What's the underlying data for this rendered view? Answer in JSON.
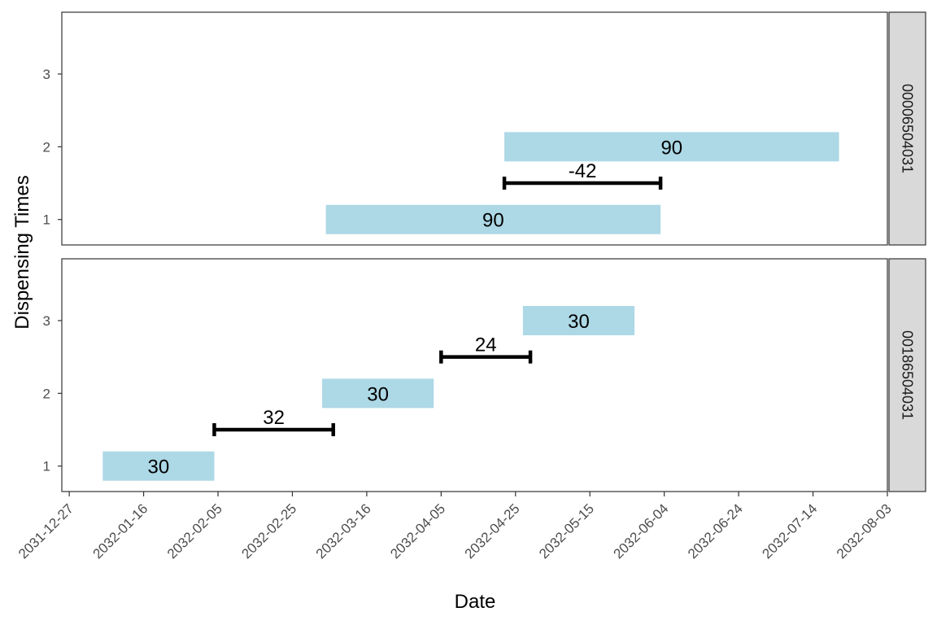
{
  "chart_data": {
    "type": "bar",
    "subtype": "faceted timeline (horizontal date-range bars with gap segments)",
    "xlabel": "Date",
    "ylabel": "Dispensing Times",
    "xlim": [
      "2031-12-25",
      "2032-08-03"
    ],
    "x_ticks": [
      "2031-12-27",
      "2032-01-16",
      "2032-02-05",
      "2032-02-25",
      "2032-03-16",
      "2032-04-05",
      "2032-04-25",
      "2032-05-15",
      "2032-06-04",
      "2032-06-24",
      "2032-07-14",
      "2032-08-03"
    ],
    "y_ticks": [
      1,
      2,
      3
    ],
    "ylim": [
      0.65,
      3.85
    ],
    "grid": false,
    "colors": {
      "bar": "#add8e6",
      "gap": "#000000",
      "strip": "#d9d9d9",
      "panel_border": "#333333"
    },
    "facets": [
      {
        "label": "00006504031",
        "bars": [
          {
            "y": 1,
            "start": "2032-03-05",
            "end": "2032-06-03",
            "label": "90"
          },
          {
            "y": 2,
            "start": "2032-04-22",
            "end": "2032-07-21",
            "label": "90"
          }
        ],
        "gaps": [
          {
            "y": 1.5,
            "start": "2032-04-22",
            "end": "2032-06-03",
            "label": "-42"
          }
        ]
      },
      {
        "label": "00186504031",
        "bars": [
          {
            "y": 1,
            "start": "2032-01-05",
            "end": "2032-02-04",
            "label": "30"
          },
          {
            "y": 2,
            "start": "2032-03-04",
            "end": "2032-04-03",
            "label": "30"
          },
          {
            "y": 3,
            "start": "2032-04-27",
            "end": "2032-05-27",
            "label": "30"
          }
        ],
        "gaps": [
          {
            "y": 1.5,
            "start": "2032-02-04",
            "end": "2032-03-07",
            "label": "32"
          },
          {
            "y": 2.5,
            "start": "2032-04-05",
            "end": "2032-04-29",
            "label": "24"
          }
        ]
      }
    ]
  }
}
